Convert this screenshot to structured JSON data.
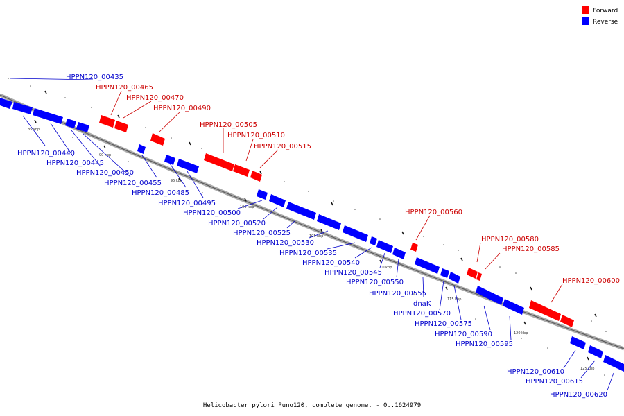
{
  "legend": {
    "forward_label": "Forward",
    "reverse_label": "Reverse",
    "forward_color": "#ff0000",
    "reverse_color": "#0000ff"
  },
  "caption": "Helicobacter pylori Puno120, complete genome. - 0..1624979",
  "ticks": [
    "85 kbp",
    "90 kbp",
    "95 kbp",
    "100 kbp",
    "105 kbp",
    "110 kbp",
    "115 kbp",
    "120 kbp",
    "125 kbp"
  ],
  "genes": [
    {
      "name": "HPPN120_00435",
      "strand": "reverse"
    },
    {
      "name": "HPPN120_00440",
      "strand": "reverse"
    },
    {
      "name": "HPPN120_00445",
      "strand": "reverse"
    },
    {
      "name": "HPPN120_00450",
      "strand": "reverse"
    },
    {
      "name": "HPPN120_00455",
      "strand": "reverse"
    },
    {
      "name": "HPPN120_00465",
      "strand": "forward"
    },
    {
      "name": "HPPN120_00470",
      "strand": "forward"
    },
    {
      "name": "HPPN120_00485",
      "strand": "reverse"
    },
    {
      "name": "HPPN120_00490",
      "strand": "forward"
    },
    {
      "name": "HPPN120_00495",
      "strand": "reverse"
    },
    {
      "name": "HPPN120_00500",
      "strand": "reverse"
    },
    {
      "name": "HPPN120_00505",
      "strand": "forward"
    },
    {
      "name": "HPPN120_00510",
      "strand": "forward"
    },
    {
      "name": "HPPN120_00515",
      "strand": "forward"
    },
    {
      "name": "HPPN120_00520",
      "strand": "reverse"
    },
    {
      "name": "HPPN120_00525",
      "strand": "reverse"
    },
    {
      "name": "HPPN120_00530",
      "strand": "reverse"
    },
    {
      "name": "HPPN120_00535",
      "strand": "reverse"
    },
    {
      "name": "HPPN120_00540",
      "strand": "reverse"
    },
    {
      "name": "HPPN120_00545",
      "strand": "reverse"
    },
    {
      "name": "HPPN120_00550",
      "strand": "reverse"
    },
    {
      "name": "HPPN120_00555",
      "strand": "reverse"
    },
    {
      "name": "HPPN120_00560",
      "strand": "forward"
    },
    {
      "name": "dnaK",
      "strand": "reverse"
    },
    {
      "name": "HPPN120_00570",
      "strand": "reverse"
    },
    {
      "name": "HPPN120_00575",
      "strand": "reverse"
    },
    {
      "name": "HPPN120_00580",
      "strand": "forward"
    },
    {
      "name": "HPPN120_00585",
      "strand": "forward"
    },
    {
      "name": "HPPN120_00590",
      "strand": "reverse"
    },
    {
      "name": "HPPN120_00595",
      "strand": "reverse"
    },
    {
      "name": "HPPN120_00600",
      "strand": "forward"
    },
    {
      "name": "HPPN120_00610",
      "strand": "reverse"
    },
    {
      "name": "HPPN120_00615",
      "strand": "reverse"
    },
    {
      "name": "HPPN120_00620",
      "strand": "reverse"
    }
  ]
}
